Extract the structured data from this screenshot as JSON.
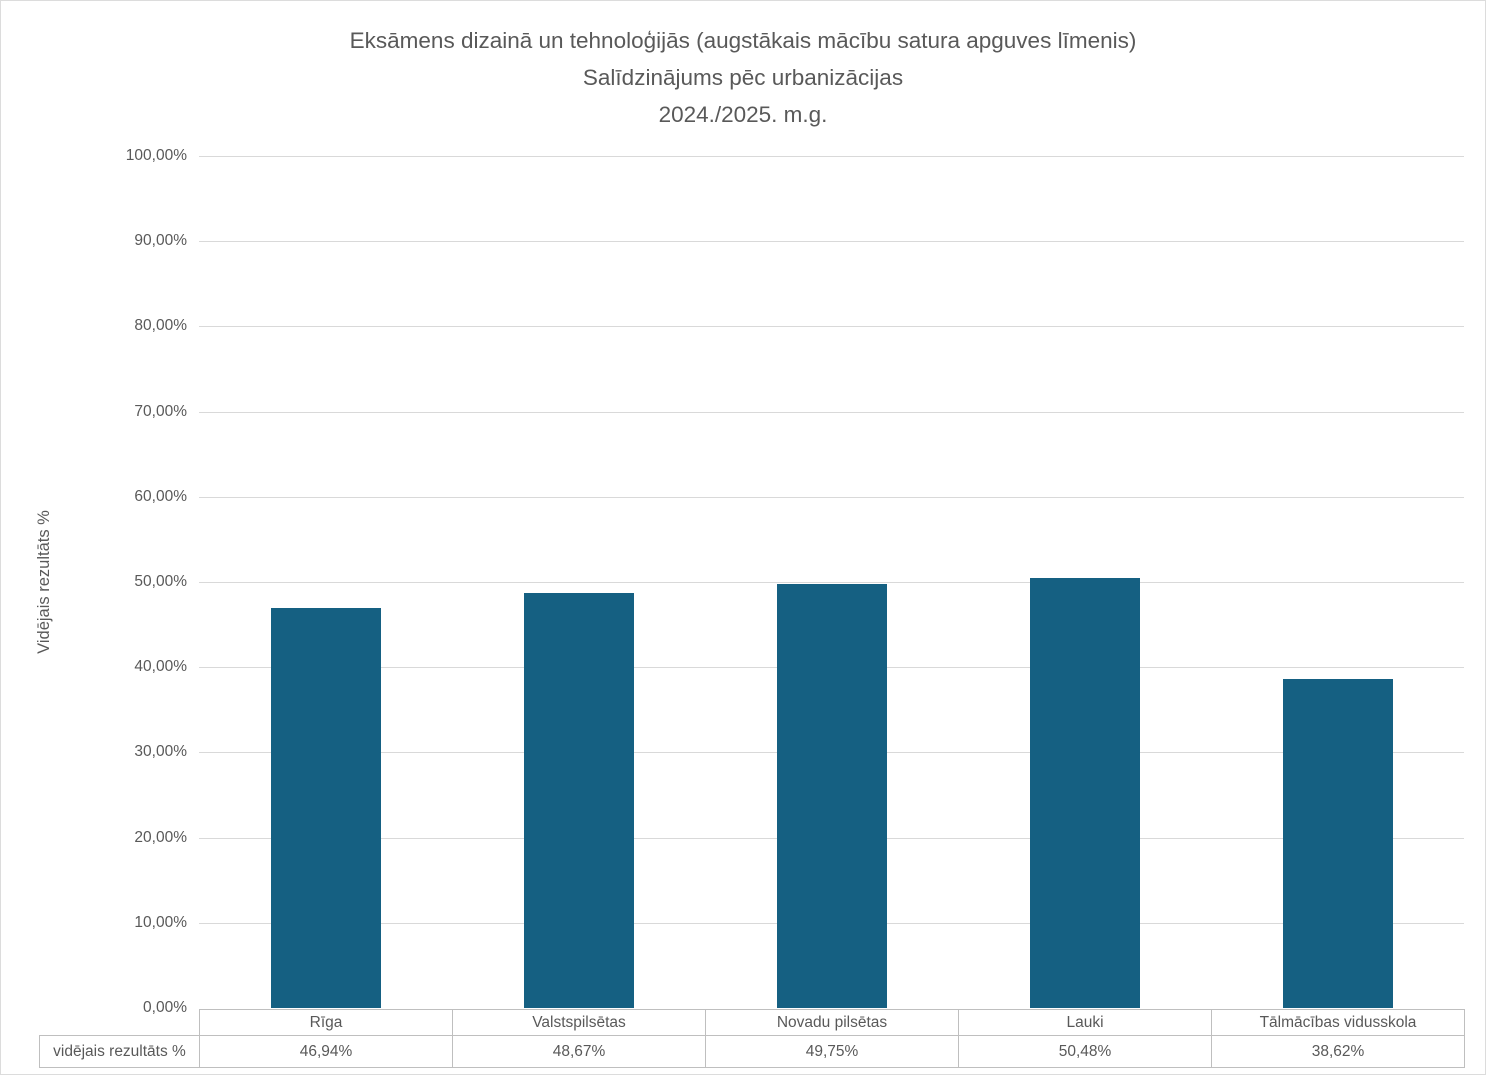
{
  "page": {
    "background": "#FFFFFF",
    "frame_border_color": "#DCDCDC"
  },
  "title": {
    "line1": "Eksāmens dizainā un tehnoloģijās (augstākais mācību satura apguves līmenis)",
    "line2": "Salīdzinājums pēc urbanizācijas",
    "line3": "2024./2025. m.g."
  },
  "chart_data": {
    "type": "bar",
    "title": "Eksāmens dizainā un tehnoloģijās (augstākais mācību satura apguves līmenis) — Salīdzinājums pēc urbanizācijas — 2024./2025. m.g.",
    "categories": [
      "Rīga",
      "Valstspilsētas",
      "Novadu pilsētas",
      "Lauki",
      "Tālmācības vidusskola"
    ],
    "series": [
      {
        "name": "vidējais rezultāts %",
        "values": [
          46.94,
          48.67,
          49.75,
          50.48,
          38.62
        ]
      }
    ],
    "value_labels": [
      "46,94%",
      "48,67%",
      "49,75%",
      "50,48%",
      "38,62%"
    ],
    "xlabel": "",
    "ylabel": "Vidējais rezultāts %",
    "ylim": [
      0,
      100
    ],
    "ytick_step": 10,
    "ytick_labels": [
      "0,00%",
      "10,00%",
      "20,00%",
      "30,00%",
      "40,00%",
      "50,00%",
      "60,00%",
      "70,00%",
      "80,00%",
      "90,00%",
      "100,00%"
    ],
    "grid": true,
    "legend_position": "none",
    "data_table_shown": true,
    "colors": {
      "bar": "#156082",
      "gridline": "#D9D9D9",
      "text": "#595959",
      "table_border": "#BFBFBF"
    }
  }
}
